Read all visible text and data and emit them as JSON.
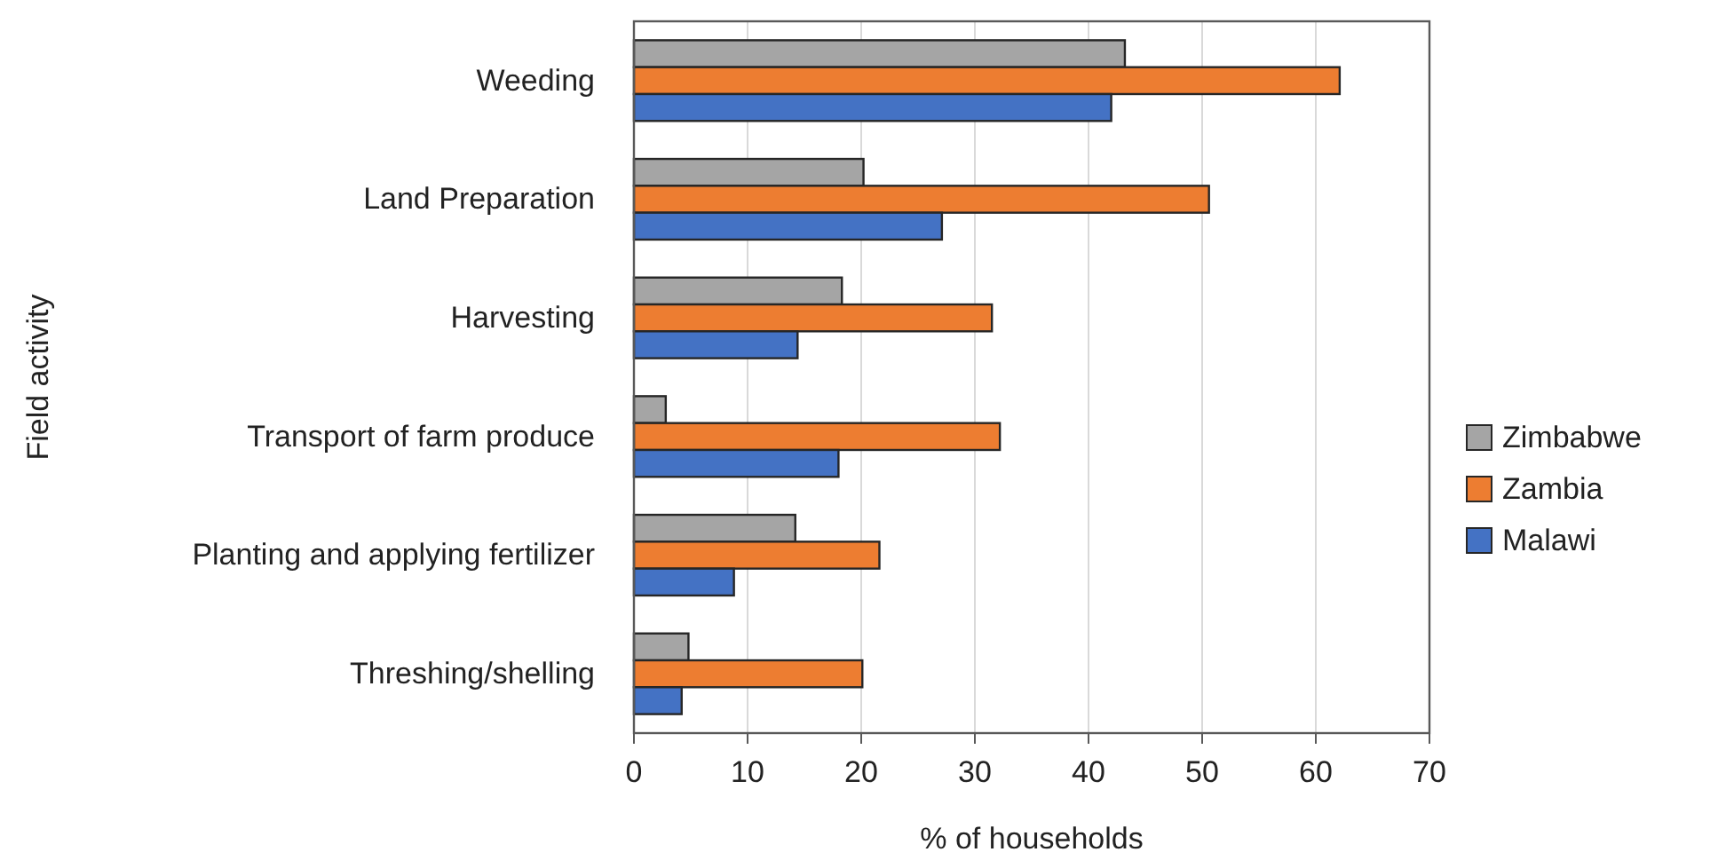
{
  "chart_data": {
    "type": "bar",
    "orientation": "horizontal",
    "xlabel": "% of households",
    "ylabel": "Field activity",
    "categories": [
      "Weeding",
      "Land Preparation",
      "Harvesting",
      "Transport of farm produce",
      "Planting and applying fertilizer",
      "Threshing/shelling"
    ],
    "series": [
      {
        "name": "Zimbabwe",
        "color": "#a5a5a5",
        "values": [
          43.2,
          20.2,
          18.3,
          2.8,
          14.2,
          4.8
        ]
      },
      {
        "name": "Zambia",
        "color": "#ed7d31",
        "values": [
          62.1,
          50.6,
          31.5,
          32.2,
          21.6,
          20.1
        ]
      },
      {
        "name": "Malawi",
        "color": "#4472c4",
        "values": [
          42.0,
          27.1,
          14.4,
          18.0,
          8.8,
          4.2
        ]
      }
    ],
    "xlim": [
      0,
      70
    ],
    "xticks": [
      0,
      10,
      20,
      30,
      40,
      50,
      60,
      70
    ],
    "grid": "x",
    "legend": "right"
  }
}
